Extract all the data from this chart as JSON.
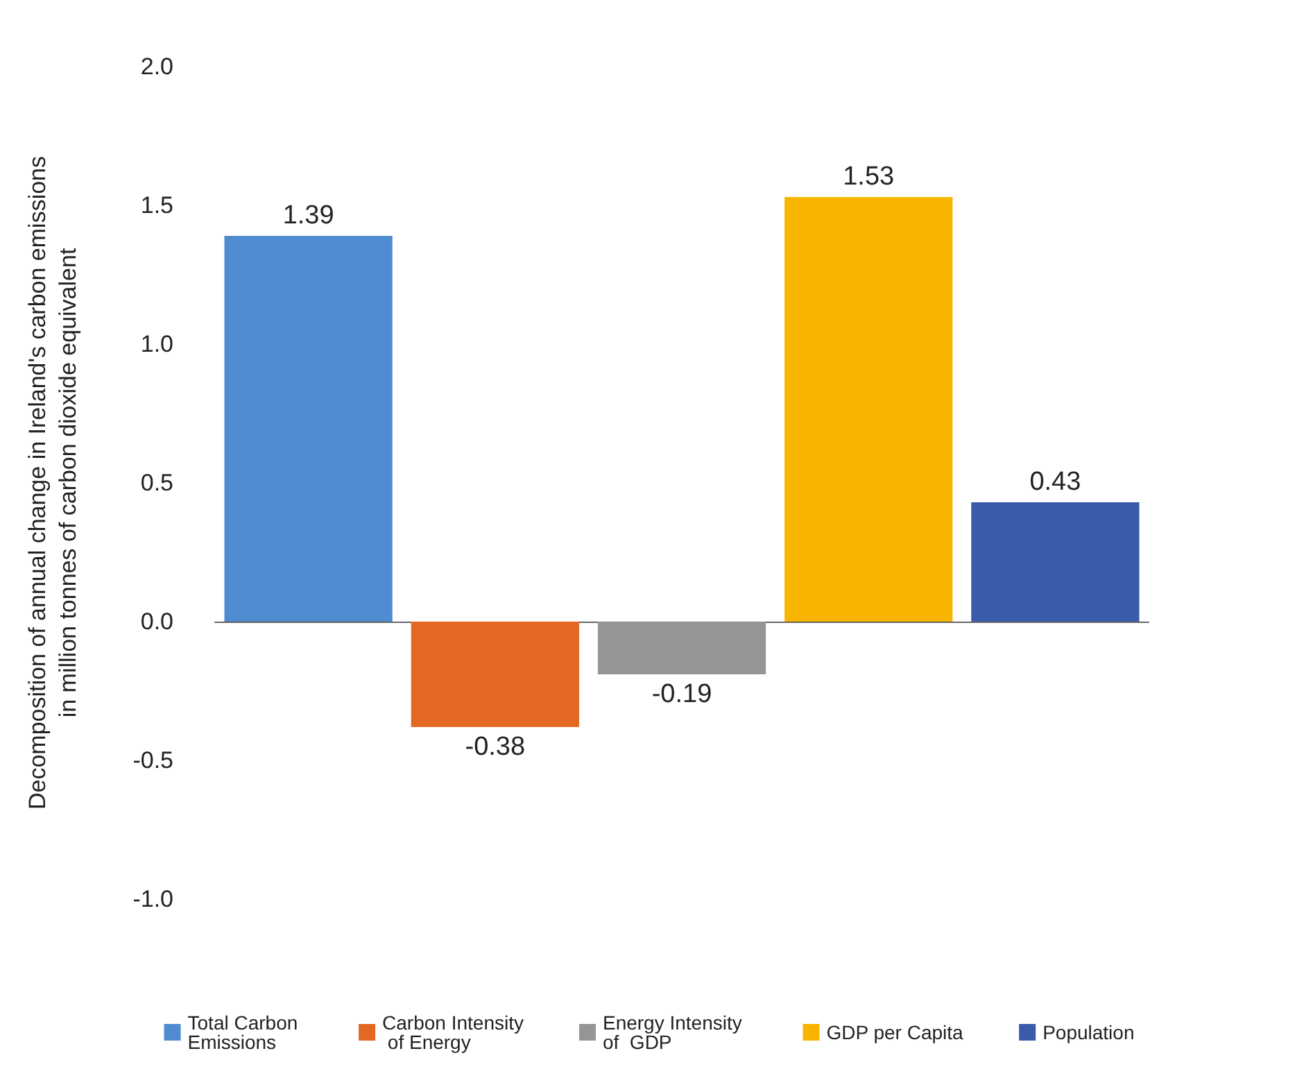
{
  "chart_data": {
    "type": "bar",
    "ylabel": "Decomposition of annual change in Ireland's carbon emissions\nin million tonnes of carbon dioxide equivalent",
    "categories": [
      null,
      null,
      null,
      null,
      null
    ],
    "series": [
      {
        "name": "Total Carbon Emissions",
        "color": "#4e8bcf",
        "values": [
          1.39,
          null,
          null,
          null,
          null
        ]
      },
      {
        "name": "Carbon Intensity of Energy",
        "color": "#e36822",
        "values": [
          null,
          -0.38,
          null,
          null,
          null
        ]
      },
      {
        "name": "Energy Intensity of  GDP",
        "color": "#959595",
        "values": [
          null,
          null,
          -0.19,
          null,
          null
        ]
      },
      {
        "name": "GDP per Capita",
        "color": "#f7b500",
        "values": [
          null,
          null,
          null,
          1.53,
          null
        ]
      },
      {
        "name": "Population",
        "color": "#3a5ba9",
        "values": [
          null,
          null,
          null,
          null,
          0.43
        ]
      }
    ],
    "ylim": [
      -1,
      2
    ],
    "yticks": [
      {
        "value": -1,
        "label": "-1.0"
      },
      {
        "value": -0.5,
        "label": "-0.5"
      },
      {
        "value": 0,
        "label": "0.0"
      },
      {
        "value": 0.5,
        "label": "0.5"
      },
      {
        "value": 1,
        "label": "1.0"
      },
      {
        "value": 1.5,
        "label": "1.5"
      },
      {
        "value": 2,
        "label": "2.0"
      }
    ],
    "legend": "bottom",
    "data_labels": true
  }
}
